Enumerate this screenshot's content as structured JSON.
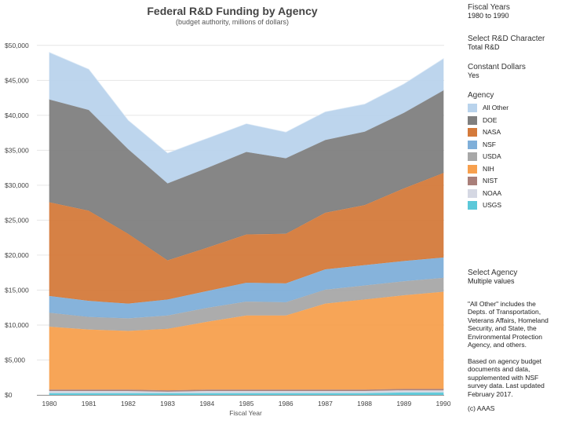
{
  "chart_data": {
    "type": "area",
    "stacked": true,
    "title": "Federal R&D Funding by Agency",
    "subtitle": "(budget authority, millions of dollars)",
    "xlabel": "Fiscal Year",
    "ylabel": "",
    "x": [
      "1980",
      "1981",
      "1982",
      "1983",
      "1984",
      "1985",
      "1986",
      "1987",
      "1988",
      "1989",
      "1990"
    ],
    "ylim": [
      0,
      52000
    ],
    "yticks": [
      0,
      5000,
      10000,
      15000,
      20000,
      25000,
      30000,
      35000,
      40000,
      45000,
      50000
    ],
    "ytick_labels": [
      "$0",
      "$5,000",
      "$10,000",
      "$15,000",
      "$20,000",
      "$25,000",
      "$30,000",
      "$35,000",
      "$40,000",
      "$45,000",
      "$50,000"
    ],
    "series": [
      {
        "name": "USGS",
        "color": "#5bc8d9",
        "values": [
          300,
          300,
          300,
          300,
          300,
          300,
          300,
          300,
          300,
          400,
          400
        ]
      },
      {
        "name": "NOAA",
        "color": "#d5d8e3",
        "values": [
          300,
          300,
          300,
          200,
          300,
          300,
          300,
          300,
          300,
          300,
          300
        ]
      },
      {
        "name": "NIST",
        "color": "#a97f7a",
        "values": [
          200,
          200,
          200,
          200,
          200,
          200,
          200,
          200,
          200,
          200,
          200
        ]
      },
      {
        "name": "NIH",
        "color": "#f7a04e",
        "values": [
          9000,
          8600,
          8400,
          8800,
          9700,
          10600,
          10600,
          12300,
          12900,
          13400,
          13900
        ]
      },
      {
        "name": "USDA",
        "color": "#a8a8a8",
        "values": [
          2000,
          1800,
          1800,
          1900,
          2000,
          2000,
          1900,
          2000,
          2000,
          2000,
          2000
        ]
      },
      {
        "name": "NSF",
        "color": "#7fafd9",
        "values": [
          2400,
          2300,
          2100,
          2300,
          2400,
          2700,
          2700,
          2900,
          2900,
          2900,
          2900
        ]
      },
      {
        "name": "NASA",
        "color": "#d47a3b",
        "values": [
          13400,
          12900,
          10000,
          5600,
          6200,
          6900,
          7100,
          8100,
          8600,
          10400,
          12100
        ]
      },
      {
        "name": "DOE",
        "color": "#7f7f7f",
        "values": [
          14700,
          14400,
          12100,
          11000,
          11400,
          11800,
          10800,
          10400,
          10500,
          10800,
          11800
        ]
      },
      {
        "name": "All Other",
        "color": "#b9d3ec",
        "values": [
          6700,
          5800,
          4100,
          4300,
          4200,
          4000,
          3700,
          4000,
          3900,
          4100,
          4500
        ]
      }
    ]
  },
  "side_panel": {
    "fiscal_years": {
      "heading": "Fiscal Years",
      "value": "1980 to 1990"
    },
    "rd_character": {
      "heading": "Select R&D Character",
      "value": "Total R&D"
    },
    "constant_dollars": {
      "heading": "Constant Dollars",
      "value": "Yes"
    },
    "legend_title": "Agency",
    "legend": [
      {
        "label": "All Other",
        "color": "#b9d3ec"
      },
      {
        "label": "DOE",
        "color": "#7f7f7f"
      },
      {
        "label": "NASA",
        "color": "#d47a3b"
      },
      {
        "label": "NSF",
        "color": "#7fafd9"
      },
      {
        "label": "USDA",
        "color": "#a8a8a8"
      },
      {
        "label": "NIH",
        "color": "#f7a04e"
      },
      {
        "label": "NIST",
        "color": "#a97f7a"
      },
      {
        "label": "NOAA",
        "color": "#d5d8e3"
      },
      {
        "label": "USGS",
        "color": "#5bc8d9"
      }
    ],
    "select_agency": {
      "heading": "Select Agency",
      "value": "Multiple values"
    },
    "note": "\"All Other\" includes the\nDepts. of Transportation,\nVeterans Affairs, Homeland\nSecurity, and State, the\nEnvironmental Protection\nAgency, and others.",
    "source": "Based on agency budget\ndocuments and data,\nsupplemented with NSF\nsurvey data. Last updated\nFebruary 2017.",
    "copyright": "(c) AAAS"
  }
}
